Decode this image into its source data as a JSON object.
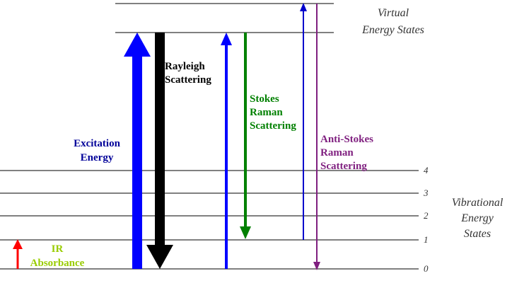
{
  "virtual_label": [
    "Virtual",
    "Energy States"
  ],
  "vibrational_label": [
    "Vibrational",
    "Energy",
    "States"
  ],
  "levels": [
    "0",
    "1",
    "2",
    "3",
    "4"
  ],
  "ir_label": [
    "IR",
    "Absorbance"
  ],
  "excitation_label": [
    "Excitation",
    "Energy"
  ],
  "rayleigh_label": [
    "Rayleigh",
    "Scattering"
  ],
  "stokes_label": [
    "Stokes",
    "Raman",
    "Scattering"
  ],
  "antistokes_label": [
    "Anti-Stokes",
    "Raman",
    "Scattering"
  ],
  "colors": {
    "ir": "#ff0000",
    "ir_text": "#99cc00",
    "excitation": "#0000ff",
    "excitation_text": "#000099",
    "rayleigh": "#000000",
    "stokes": "#008000",
    "antistokes": "#7f1f7f",
    "antistokes_up": "#0000cc",
    "line": "#000000",
    "label_text": "#333333"
  }
}
